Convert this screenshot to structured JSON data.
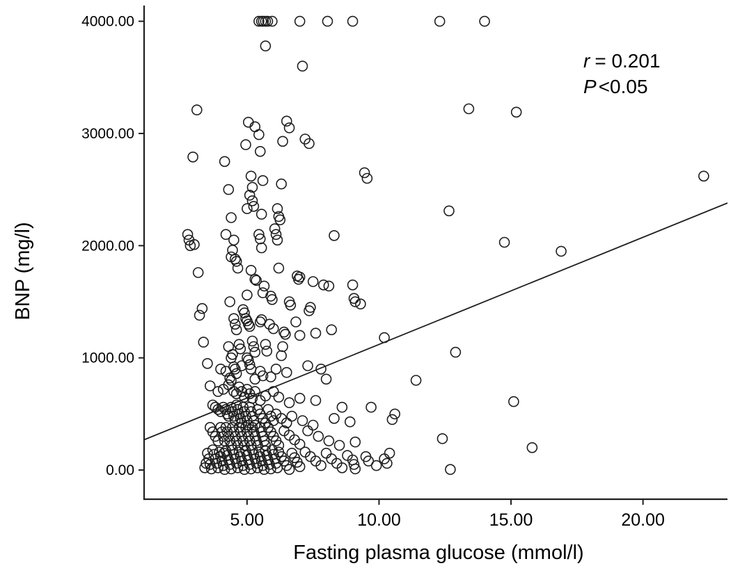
{
  "chart_data": {
    "type": "scatter",
    "title": "",
    "xlabel": "Fasting plasma glucose (mmol/l)",
    "ylabel": "BNP (mg/l)",
    "xlim": [
      1.1,
      23.2
    ],
    "ylim": [
      -260,
      4140
    ],
    "grid": false,
    "legend": "none",
    "x_ticks": [
      {
        "value": 5,
        "label": "5.00"
      },
      {
        "value": 10,
        "label": "10.00"
      },
      {
        "value": 15,
        "label": "15.00"
      },
      {
        "value": 20,
        "label": "20.00"
      }
    ],
    "y_ticks": [
      {
        "value": 0,
        "label": "0.00"
      },
      {
        "value": 1000,
        "label": "1000.00"
      },
      {
        "value": 2000,
        "label": "2000.00"
      },
      {
        "value": 3000,
        "label": "3000.00"
      },
      {
        "value": 4000,
        "label": "4000.00"
      }
    ],
    "annotation": {
      "r_symbol": "r",
      "r_rest": "= 0.201",
      "p_symbol": "P",
      "p_rest": "<0.05"
    },
    "regression_line": {
      "x1": 1.1,
      "y1": 270,
      "x2": 23.2,
      "y2": 2380
    },
    "marker": {
      "radius": 7,
      "stroke": "#1f1f1f",
      "fill": "none",
      "stroke_width": 1.6
    },
    "colors": {
      "axis": "#1f1f1f",
      "text": "#000000",
      "background": "#ffffff"
    },
    "points": [
      [
        5.45,
        4000
      ],
      [
        5.55,
        4000
      ],
      [
        5.62,
        4000
      ],
      [
        5.7,
        4000
      ],
      [
        5.78,
        4000
      ],
      [
        5.95,
        4000
      ],
      [
        7.0,
        4000
      ],
      [
        8.05,
        4000
      ],
      [
        9.0,
        4000
      ],
      [
        12.3,
        4000
      ],
      [
        14.0,
        4000
      ],
      [
        5.7,
        3780
      ],
      [
        7.1,
        3600
      ],
      [
        3.1,
        3210
      ],
      [
        13.4,
        3220
      ],
      [
        15.2,
        3190
      ],
      [
        5.05,
        3100
      ],
      [
        5.3,
        3060
      ],
      [
        5.45,
        2990
      ],
      [
        6.5,
        3110
      ],
      [
        6.6,
        3050
      ],
      [
        6.35,
        2930
      ],
      [
        7.2,
        2950
      ],
      [
        7.35,
        2910
      ],
      [
        4.95,
        2900
      ],
      [
        5.5,
        2840
      ],
      [
        2.95,
        2790
      ],
      [
        4.15,
        2750
      ],
      [
        9.45,
        2650
      ],
      [
        9.55,
        2600
      ],
      [
        22.3,
        2620
      ],
      [
        5.15,
        2620
      ],
      [
        5.6,
        2580
      ],
      [
        5.2,
        2520
      ],
      [
        6.3,
        2550
      ],
      [
        4.3,
        2500
      ],
      [
        5.1,
        2450
      ],
      [
        5.2,
        2400
      ],
      [
        5.25,
        2350
      ],
      [
        6.15,
        2330
      ],
      [
        6.2,
        2260
      ],
      [
        6.25,
        2230
      ],
      [
        12.65,
        2310
      ],
      [
        5.0,
        2330
      ],
      [
        5.55,
        2280
      ],
      [
        4.4,
        2250
      ],
      [
        2.75,
        2100
      ],
      [
        2.8,
        2050
      ],
      [
        3.0,
        2010
      ],
      [
        2.85,
        2000
      ],
      [
        4.2,
        2100
      ],
      [
        4.5,
        2050
      ],
      [
        5.45,
        2100
      ],
      [
        5.5,
        2060
      ],
      [
        5.55,
        1980
      ],
      [
        6.05,
        2150
      ],
      [
        6.1,
        2100
      ],
      [
        6.15,
        2050
      ],
      [
        8.3,
        2090
      ],
      [
        14.75,
        2030
      ],
      [
        16.9,
        1950
      ],
      [
        4.45,
        1960
      ],
      [
        4.4,
        1900
      ],
      [
        4.55,
        1880
      ],
      [
        4.6,
        1860
      ],
      [
        3.15,
        1760
      ],
      [
        4.65,
        1800
      ],
      [
        5.15,
        1780
      ],
      [
        5.3,
        1700
      ],
      [
        5.35,
        1690
      ],
      [
        6.2,
        1800
      ],
      [
        6.9,
        1730
      ],
      [
        7.0,
        1720
      ],
      [
        6.95,
        1700
      ],
      [
        7.5,
        1680
      ],
      [
        7.9,
        1650
      ],
      [
        8.1,
        1640
      ],
      [
        9.0,
        1650
      ],
      [
        9.05,
        1530
      ],
      [
        5.65,
        1640
      ],
      [
        3.3,
        1440
      ],
      [
        4.35,
        1500
      ],
      [
        5.0,
        1560
      ],
      [
        5.6,
        1580
      ],
      [
        6.6,
        1500
      ],
      [
        7.4,
        1450
      ],
      [
        9.3,
        1480
      ],
      [
        5.9,
        1550
      ],
      [
        5.95,
        1520
      ],
      [
        4.85,
        1430
      ],
      [
        4.9,
        1400
      ],
      [
        7.35,
        1420
      ],
      [
        9.1,
        1500
      ],
      [
        6.65,
        1470
      ],
      [
        3.2,
        1380
      ],
      [
        4.5,
        1350
      ],
      [
        4.55,
        1300
      ],
      [
        4.6,
        1250
      ],
      [
        5.5,
        1320
      ],
      [
        5.55,
        1340
      ],
      [
        5.85,
        1300
      ],
      [
        6.0,
        1260
      ],
      [
        6.85,
        1320
      ],
      [
        7.0,
        1200
      ],
      [
        8.2,
        1250
      ],
      [
        10.2,
        1180
      ],
      [
        4.95,
        1350
      ],
      [
        5.0,
        1330
      ],
      [
        5.05,
        1300
      ],
      [
        5.1,
        1280
      ],
      [
        6.4,
        1230
      ],
      [
        6.45,
        1210
      ],
      [
        7.6,
        1220
      ],
      [
        3.35,
        1140
      ],
      [
        4.3,
        1100
      ],
      [
        4.7,
        1120
      ],
      [
        4.75,
        1080
      ],
      [
        5.2,
        1150
      ],
      [
        5.25,
        1100
      ],
      [
        5.3,
        1050
      ],
      [
        5.7,
        1120
      ],
      [
        5.75,
        1060
      ],
      [
        6.3,
        1020
      ],
      [
        6.35,
        1100
      ],
      [
        12.9,
        1050
      ],
      [
        4.4,
        1000
      ],
      [
        4.45,
        1030
      ],
      [
        5.0,
        1000
      ],
      [
        5.05,
        980
      ],
      [
        3.5,
        950
      ],
      [
        4.0,
        900
      ],
      [
        4.2,
        880
      ],
      [
        4.5,
        920
      ],
      [
        4.55,
        900
      ],
      [
        4.6,
        860
      ],
      [
        4.8,
        930
      ],
      [
        5.1,
        940
      ],
      [
        5.15,
        900
      ],
      [
        5.5,
        880
      ],
      [
        5.6,
        840
      ],
      [
        6.1,
        900
      ],
      [
        6.5,
        870
      ],
      [
        7.3,
        930
      ],
      [
        7.8,
        900
      ],
      [
        11.4,
        800
      ],
      [
        4.35,
        820
      ],
      [
        4.4,
        800
      ],
      [
        5.3,
        810
      ],
      [
        5.9,
        830
      ],
      [
        8.0,
        810
      ],
      [
        3.6,
        750
      ],
      [
        3.9,
        700
      ],
      [
        4.1,
        720
      ],
      [
        4.3,
        760
      ],
      [
        4.5,
        700
      ],
      [
        4.6,
        680
      ],
      [
        4.7,
        740
      ],
      [
        4.8,
        700
      ],
      [
        4.9,
        650
      ],
      [
        5.0,
        720
      ],
      [
        5.1,
        680
      ],
      [
        5.2,
        640
      ],
      [
        5.3,
        700
      ],
      [
        5.5,
        620
      ],
      [
        5.7,
        660
      ],
      [
        6.0,
        700
      ],
      [
        6.2,
        650
      ],
      [
        6.6,
        600
      ],
      [
        7.0,
        640
      ],
      [
        7.6,
        620
      ],
      [
        9.7,
        560
      ],
      [
        15.1,
        610
      ],
      [
        8.6,
        560
      ],
      [
        3.7,
        580
      ],
      [
        3.8,
        560
      ],
      [
        3.9,
        540
      ],
      [
        4.0,
        520
      ],
      [
        4.1,
        560
      ],
      [
        4.2,
        540
      ],
      [
        4.25,
        500
      ],
      [
        4.3,
        480
      ],
      [
        4.4,
        560
      ],
      [
        4.45,
        520
      ],
      [
        4.5,
        480
      ],
      [
        4.55,
        440
      ],
      [
        4.6,
        580
      ],
      [
        4.65,
        540
      ],
      [
        4.7,
        500
      ],
      [
        4.75,
        460
      ],
      [
        4.8,
        420
      ],
      [
        4.85,
        560
      ],
      [
        4.9,
        520
      ],
      [
        4.95,
        480
      ],
      [
        5.0,
        440
      ],
      [
        5.05,
        400
      ],
      [
        5.1,
        560
      ],
      [
        5.15,
        520
      ],
      [
        5.2,
        480
      ],
      [
        5.25,
        440
      ],
      [
        5.3,
        400
      ],
      [
        5.4,
        540
      ],
      [
        5.5,
        500
      ],
      [
        5.6,
        460
      ],
      [
        5.7,
        420
      ],
      [
        5.8,
        540
      ],
      [
        5.9,
        480
      ],
      [
        6.0,
        440
      ],
      [
        6.1,
        500
      ],
      [
        6.3,
        460
      ],
      [
        6.5,
        420
      ],
      [
        6.7,
        480
      ],
      [
        7.1,
        440
      ],
      [
        7.5,
        400
      ],
      [
        8.3,
        460
      ],
      [
        8.9,
        430
      ],
      [
        10.5,
        450
      ],
      [
        10.6,
        500
      ],
      [
        3.6,
        380
      ],
      [
        3.7,
        340
      ],
      [
        3.8,
        300
      ],
      [
        3.9,
        260
      ],
      [
        4.0,
        380
      ],
      [
        4.05,
        340
      ],
      [
        4.1,
        300
      ],
      [
        4.15,
        260
      ],
      [
        4.2,
        380
      ],
      [
        4.25,
        340
      ],
      [
        4.3,
        300
      ],
      [
        4.35,
        260
      ],
      [
        4.4,
        220
      ],
      [
        4.45,
        380
      ],
      [
        4.5,
        340
      ],
      [
        4.55,
        300
      ],
      [
        4.6,
        260
      ],
      [
        4.65,
        220
      ],
      [
        4.7,
        380
      ],
      [
        4.75,
        340
      ],
      [
        4.8,
        300
      ],
      [
        4.85,
        260
      ],
      [
        4.9,
        220
      ],
      [
        4.95,
        380
      ],
      [
        5.0,
        340
      ],
      [
        5.05,
        300
      ],
      [
        5.1,
        260
      ],
      [
        5.15,
        220
      ],
      [
        5.2,
        380
      ],
      [
        5.25,
        340
      ],
      [
        5.3,
        300
      ],
      [
        5.35,
        260
      ],
      [
        5.4,
        220
      ],
      [
        5.5,
        380
      ],
      [
        5.55,
        340
      ],
      [
        5.6,
        300
      ],
      [
        5.65,
        260
      ],
      [
        5.7,
        220
      ],
      [
        5.8,
        380
      ],
      [
        5.9,
        340
      ],
      [
        6.0,
        300
      ],
      [
        6.1,
        260
      ],
      [
        6.2,
        220
      ],
      [
        6.4,
        350
      ],
      [
        6.6,
        310
      ],
      [
        6.8,
        270
      ],
      [
        7.0,
        230
      ],
      [
        7.3,
        350
      ],
      [
        7.7,
        300
      ],
      [
        8.1,
        260
      ],
      [
        8.5,
        220
      ],
      [
        12.4,
        280
      ],
      [
        15.8,
        200
      ],
      [
        9.1,
        250
      ],
      [
        3.5,
        150
      ],
      [
        3.55,
        100
      ],
      [
        3.6,
        50
      ],
      [
        3.65,
        10
      ],
      [
        3.7,
        180
      ],
      [
        3.75,
        140
      ],
      [
        3.8,
        100
      ],
      [
        3.85,
        60
      ],
      [
        3.9,
        20
      ],
      [
        3.95,
        160
      ],
      [
        4.0,
        120
      ],
      [
        4.05,
        80
      ],
      [
        4.1,
        40
      ],
      [
        4.15,
        5
      ],
      [
        4.2,
        170
      ],
      [
        4.25,
        130
      ],
      [
        4.3,
        90
      ],
      [
        4.35,
        50
      ],
      [
        4.4,
        10
      ],
      [
        4.45,
        180
      ],
      [
        4.5,
        140
      ],
      [
        4.55,
        100
      ],
      [
        4.6,
        60
      ],
      [
        4.65,
        20
      ],
      [
        4.7,
        160
      ],
      [
        4.75,
        120
      ],
      [
        4.8,
        80
      ],
      [
        4.85,
        40
      ],
      [
        4.9,
        5
      ],
      [
        4.95,
        170
      ],
      [
        5.0,
        130
      ],
      [
        5.05,
        90
      ],
      [
        5.1,
        50
      ],
      [
        5.15,
        10
      ],
      [
        5.2,
        180
      ],
      [
        5.25,
        140
      ],
      [
        5.3,
        100
      ],
      [
        5.35,
        60
      ],
      [
        5.4,
        20
      ],
      [
        5.45,
        160
      ],
      [
        5.5,
        120
      ],
      [
        5.55,
        80
      ],
      [
        5.6,
        40
      ],
      [
        5.65,
        5
      ],
      [
        5.7,
        170
      ],
      [
        5.75,
        130
      ],
      [
        5.8,
        90
      ],
      [
        5.85,
        50
      ],
      [
        5.9,
        10
      ],
      [
        5.95,
        180
      ],
      [
        6.0,
        140
      ],
      [
        6.05,
        100
      ],
      [
        6.1,
        60
      ],
      [
        6.15,
        20
      ],
      [
        6.2,
        160
      ],
      [
        6.3,
        120
      ],
      [
        6.4,
        80
      ],
      [
        6.5,
        40
      ],
      [
        6.6,
        5
      ],
      [
        6.7,
        150
      ],
      [
        6.8,
        110
      ],
      [
        6.9,
        70
      ],
      [
        7.0,
        30
      ],
      [
        7.2,
        160
      ],
      [
        7.4,
        120
      ],
      [
        7.6,
        80
      ],
      [
        7.8,
        40
      ],
      [
        8.0,
        150
      ],
      [
        8.2,
        100
      ],
      [
        8.4,
        60
      ],
      [
        8.6,
        20
      ],
      [
        8.8,
        130
      ],
      [
        9.0,
        90
      ],
      [
        9.05,
        50
      ],
      [
        9.1,
        10
      ],
      [
        9.5,
        120
      ],
      [
        9.6,
        80
      ],
      [
        10.2,
        100
      ],
      [
        10.3,
        60
      ],
      [
        12.7,
        5
      ],
      [
        10.4,
        150
      ],
      [
        9.9,
        40
      ],
      [
        3.45,
        60
      ],
      [
        3.4,
        20
      ],
      [
        4.12,
        150
      ]
    ]
  }
}
